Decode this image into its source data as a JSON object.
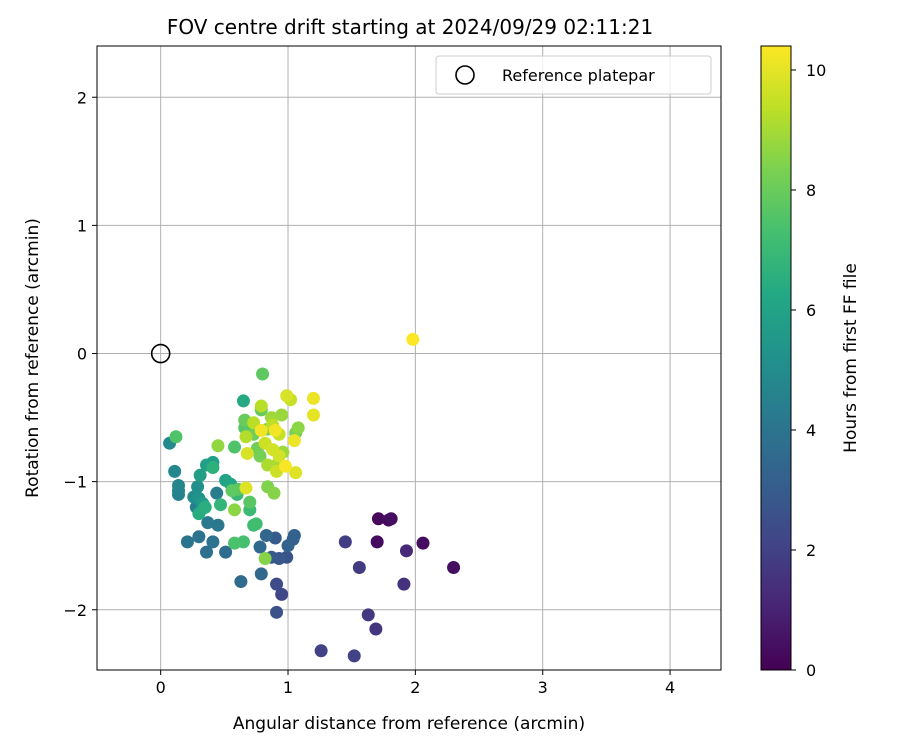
{
  "chart_data": {
    "type": "scatter",
    "title": "FOV centre drift starting at 2024/09/29 02:11:21",
    "xlabel": "Angular distance from reference (arcmin)",
    "ylabel": "Rotation from reference (arcmin)",
    "xlim": [
      -0.5,
      4.4
    ],
    "ylim": [
      -2.47,
      2.4
    ],
    "x_ticks": [
      0,
      1,
      2,
      3,
      4
    ],
    "y_ticks": [
      -2,
      -1,
      0,
      1,
      2
    ],
    "x_tick_labels": [
      "0",
      "1",
      "2",
      "3",
      "4"
    ],
    "y_tick_labels": [
      "−2",
      "−1",
      "0",
      "1",
      "2"
    ],
    "grid": true,
    "legend": {
      "position": "upper-right",
      "entries": [
        {
          "label": "Reference platepar",
          "marker": "open-circle"
        }
      ]
    },
    "reference_point": {
      "x": 0,
      "y": 0
    },
    "colorbar": {
      "label": "Hours from first FF file",
      "colormap": "viridis",
      "range": [
        0,
        10.4
      ],
      "ticks": [
        0,
        2,
        4,
        6,
        8,
        10
      ]
    },
    "points": [
      {
        "x": 1.71,
        "y": -1.29,
        "h": 0.2
      },
      {
        "x": 1.79,
        "y": -1.3,
        "h": 0.3
      },
      {
        "x": 1.7,
        "y": -1.47,
        "h": 0.3
      },
      {
        "x": 2.06,
        "y": -1.48,
        "h": 0.3
      },
      {
        "x": 2.3,
        "y": -1.67,
        "h": 0.4
      },
      {
        "x": 1.81,
        "y": -1.29,
        "h": 0.4
      },
      {
        "x": 1.93,
        "y": -1.54,
        "h": 1.2
      },
      {
        "x": 1.91,
        "y": -1.8,
        "h": 1.5
      },
      {
        "x": 1.69,
        "y": -2.15,
        "h": 1.6
      },
      {
        "x": 1.63,
        "y": -2.04,
        "h": 1.7
      },
      {
        "x": 1.56,
        "y": -1.67,
        "h": 1.8
      },
      {
        "x": 1.45,
        "y": -1.47,
        "h": 1.9
      },
      {
        "x": 1.52,
        "y": -2.36,
        "h": 2.0
      },
      {
        "x": 1.26,
        "y": -2.32,
        "h": 2.0
      },
      {
        "x": 0.95,
        "y": -1.88,
        "h": 2.2
      },
      {
        "x": 0.91,
        "y": -1.8,
        "h": 2.4
      },
      {
        "x": 0.91,
        "y": -2.02,
        "h": 2.6
      },
      {
        "x": 0.99,
        "y": -1.59,
        "h": 2.7
      },
      {
        "x": 0.93,
        "y": -1.6,
        "h": 2.8
      },
      {
        "x": 0.87,
        "y": -1.59,
        "h": 2.9
      },
      {
        "x": 0.9,
        "y": -1.44,
        "h": 3.0
      },
      {
        "x": 1.04,
        "y": -1.45,
        "h": 3.1
      },
      {
        "x": 1.05,
        "y": -1.42,
        "h": 3.2
      },
      {
        "x": 1.0,
        "y": -1.5,
        "h": 3.3
      },
      {
        "x": 0.83,
        "y": -1.42,
        "h": 3.4
      },
      {
        "x": 0.79,
        "y": -1.72,
        "h": 3.5
      },
      {
        "x": 0.78,
        "y": -1.51,
        "h": 3.5
      },
      {
        "x": 0.63,
        "y": -1.78,
        "h": 3.6
      },
      {
        "x": 0.51,
        "y": -1.55,
        "h": 3.7
      },
      {
        "x": 0.36,
        "y": -1.55,
        "h": 3.8
      },
      {
        "x": 0.41,
        "y": -1.47,
        "h": 3.9
      },
      {
        "x": 0.3,
        "y": -1.43,
        "h": 4.0
      },
      {
        "x": 0.21,
        "y": -1.47,
        "h": 4.0
      },
      {
        "x": 0.45,
        "y": -1.34,
        "h": 4.1
      },
      {
        "x": 0.37,
        "y": -1.32,
        "h": 4.2
      },
      {
        "x": 0.44,
        "y": -1.09,
        "h": 4.3
      },
      {
        "x": 0.28,
        "y": -1.2,
        "h": 4.4
      },
      {
        "x": 0.14,
        "y": -1.1,
        "h": 4.5
      },
      {
        "x": 0.14,
        "y": -1.07,
        "h": 4.6
      },
      {
        "x": 0.14,
        "y": -1.03,
        "h": 4.7
      },
      {
        "x": 0.11,
        "y": -0.92,
        "h": 4.8
      },
      {
        "x": 0.07,
        "y": -0.7,
        "h": 4.9
      },
      {
        "x": 0.26,
        "y": -1.12,
        "h": 5.0
      },
      {
        "x": 0.29,
        "y": -1.04,
        "h": 5.1
      },
      {
        "x": 0.3,
        "y": -1.13,
        "h": 5.3
      },
      {
        "x": 0.33,
        "y": -1.21,
        "h": 5.5
      },
      {
        "x": 0.33,
        "y": -1.17,
        "h": 5.6
      },
      {
        "x": 0.31,
        "y": -0.95,
        "h": 5.8
      },
      {
        "x": 0.36,
        "y": -0.87,
        "h": 5.9
      },
      {
        "x": 0.41,
        "y": -0.85,
        "h": 5.9
      },
      {
        "x": 0.51,
        "y": -0.99,
        "h": 6.0
      },
      {
        "x": 0.55,
        "y": -1.02,
        "h": 6.1
      },
      {
        "x": 0.65,
        "y": -0.37,
        "h": 6.3
      },
      {
        "x": 0.3,
        "y": -1.25,
        "h": 6.4
      },
      {
        "x": 0.35,
        "y": -1.2,
        "h": 6.5
      },
      {
        "x": 0.41,
        "y": -0.89,
        "h": 6.6
      },
      {
        "x": 0.47,
        "y": -1.18,
        "h": 6.8
      },
      {
        "x": 0.6,
        "y": -1.1,
        "h": 6.9
      },
      {
        "x": 0.7,
        "y": -1.22,
        "h": 7.0
      },
      {
        "x": 0.73,
        "y": -1.34,
        "h": 7.1
      },
      {
        "x": 0.75,
        "y": -1.33,
        "h": 7.2
      },
      {
        "x": 0.65,
        "y": -1.47,
        "h": 7.3
      },
      {
        "x": 0.58,
        "y": -1.48,
        "h": 7.4
      },
      {
        "x": 0.12,
        "y": -0.65,
        "h": 7.5
      },
      {
        "x": 0.58,
        "y": -0.73,
        "h": 7.5
      },
      {
        "x": 0.66,
        "y": -0.58,
        "h": 7.6
      },
      {
        "x": 0.7,
        "y": -1.16,
        "h": 7.7
      },
      {
        "x": 0.61,
        "y": -1.06,
        "h": 7.7
      },
      {
        "x": 0.56,
        "y": -1.07,
        "h": 7.8
      },
      {
        "x": 0.8,
        "y": -0.16,
        "h": 7.8
      },
      {
        "x": 0.79,
        "y": -0.44,
        "h": 7.9
      },
      {
        "x": 0.66,
        "y": -0.52,
        "h": 8.0
      },
      {
        "x": 0.73,
        "y": -0.63,
        "h": 8.1
      },
      {
        "x": 0.76,
        "y": -0.74,
        "h": 8.1
      },
      {
        "x": 0.78,
        "y": -0.8,
        "h": 8.2
      },
      {
        "x": 0.84,
        "y": -0.59,
        "h": 8.3
      },
      {
        "x": 0.84,
        "y": -1.04,
        "h": 8.4
      },
      {
        "x": 0.89,
        "y": -1.09,
        "h": 8.5
      },
      {
        "x": 0.82,
        "y": -1.6,
        "h": 8.5
      },
      {
        "x": 0.58,
        "y": -1.22,
        "h": 8.6
      },
      {
        "x": 0.45,
        "y": -0.72,
        "h": 8.7
      },
      {
        "x": 1.06,
        "y": -0.62,
        "h": 8.2
      },
      {
        "x": 1.08,
        "y": -0.58,
        "h": 8.6
      },
      {
        "x": 0.95,
        "y": -0.48,
        "h": 8.8
      },
      {
        "x": 0.87,
        "y": -0.5,
        "h": 8.9
      },
      {
        "x": 0.96,
        "y": -0.77,
        "h": 8.9
      },
      {
        "x": 0.92,
        "y": -0.86,
        "h": 9.0
      },
      {
        "x": 0.84,
        "y": -0.87,
        "h": 9.1
      },
      {
        "x": 0.67,
        "y": -0.65,
        "h": 9.2
      },
      {
        "x": 0.79,
        "y": -0.41,
        "h": 9.3
      },
      {
        "x": 0.73,
        "y": -0.54,
        "h": 9.3
      },
      {
        "x": 0.88,
        "y": -0.56,
        "h": 9.4
      },
      {
        "x": 0.93,
        "y": -0.63,
        "h": 9.5
      },
      {
        "x": 1.02,
        "y": -0.36,
        "h": 9.5
      },
      {
        "x": 0.91,
        "y": -0.92,
        "h": 9.6
      },
      {
        "x": 0.82,
        "y": -0.7,
        "h": 9.6
      },
      {
        "x": 0.88,
        "y": -0.75,
        "h": 9.7
      },
      {
        "x": 0.93,
        "y": -0.8,
        "h": 9.7
      },
      {
        "x": 0.99,
        "y": -0.33,
        "h": 9.8
      },
      {
        "x": 0.68,
        "y": -0.78,
        "h": 9.8
      },
      {
        "x": 0.67,
        "y": -1.05,
        "h": 9.9
      },
      {
        "x": 1.06,
        "y": -0.93,
        "h": 9.9
      },
      {
        "x": 1.2,
        "y": -0.48,
        "h": 10.0
      },
      {
        "x": 1.2,
        "y": -0.35,
        "h": 10.1
      },
      {
        "x": 1.05,
        "y": -0.68,
        "h": 10.1
      },
      {
        "x": 0.9,
        "y": -0.6,
        "h": 10.2
      },
      {
        "x": 0.79,
        "y": -0.6,
        "h": 10.2
      },
      {
        "x": 0.98,
        "y": -0.88,
        "h": 10.3
      },
      {
        "x": 1.98,
        "y": 0.11,
        "h": 10.4
      }
    ]
  }
}
